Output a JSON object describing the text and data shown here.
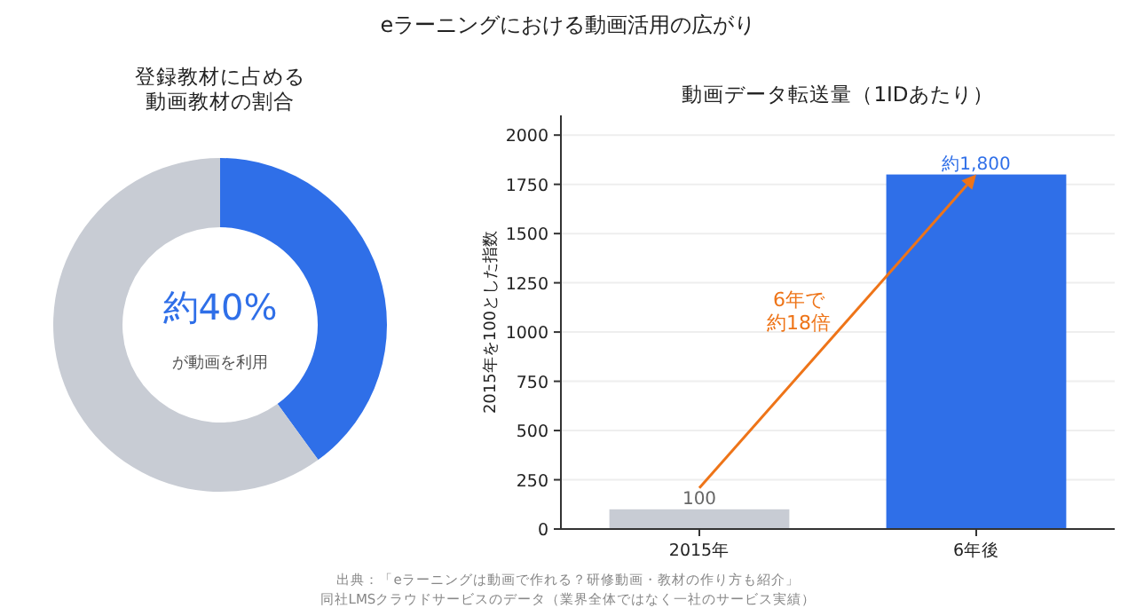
{
  "chart_data": [
    {
      "type": "other",
      "title": "eラーニングにおける動画活用の広がり",
      "annotations": [
        "出典：「eラーニングは動画で作れる？研修動画・教材の作り方も紹介」",
        "同社LMSクラウドサービスのデータ（業界全体ではなく一社のサービス実績）"
      ]
    },
    {
      "type": "donut",
      "title": "登録教材に占める動画教材の割合",
      "categories": [
        null,
        null
      ],
      "values": [
        40,
        60
      ],
      "colors": [
        "#2f6fe8",
        "#c8ccd4"
      ],
      "annotations": [
        "約40%",
        "が動画を利用"
      ]
    },
    {
      "type": "bar",
      "title": "動画データ転送量（1IDあたり）",
      "ylabel": "2015年を100とした指数",
      "categories": [
        "2015年",
        "6年後"
      ],
      "values": [
        100,
        1800
      ],
      "colors": [
        "#c8ccd4",
        "#2f6fe8"
      ],
      "value_labels": [
        "100",
        "約1,800"
      ],
      "ylim": [
        0,
        2100
      ],
      "yticks": [
        0,
        250,
        500,
        750,
        1000,
        1250,
        1500,
        1750,
        2000
      ],
      "grid": "y",
      "annotations": [
        "6年で約18倍"
      ]
    }
  ]
}
